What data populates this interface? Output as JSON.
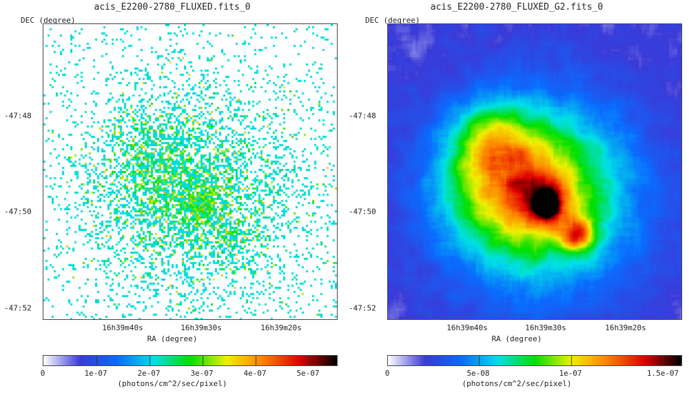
{
  "panels": [
    {
      "title": "acis_E2200-2780_FLUXED.fits_0",
      "y_axis_label": "DEC (degree)",
      "x_axis_label": "RA (degree)",
      "y_ticks": [
        "-47:48",
        "-47:50",
        "-47:52"
      ],
      "x_ticks": [
        "16h39m40s",
        "16h39m30s",
        "16h39m20s"
      ],
      "colorbar": {
        "ticks": [
          "0",
          "1e-07",
          "2e-07",
          "3e-07",
          "4e-07",
          "5e-07"
        ],
        "unit": "(photons/cm^2/sec/pixel)"
      },
      "rendering": "unsmoothed pixel counts"
    },
    {
      "title": "acis_E2200-2780_FLUXED_G2.fits_0",
      "y_axis_label": "DEC (degree)",
      "x_axis_label": "RA (degree)",
      "y_ticks": [
        "-47:48",
        "-47:50",
        "-47:52"
      ],
      "x_ticks": [
        "16h39m40s",
        "16h39m30s",
        "16h39m20s"
      ],
      "colorbar": {
        "ticks": [
          "0",
          "5e-08",
          "1e-07",
          "1.5e-07"
        ],
        "unit": "(photons/cm^2/sec/pixel)"
      },
      "rendering": "gaussian smoothed"
    }
  ],
  "colormap": [
    "#ffffff",
    "#3a3ad8",
    "#0a6cff",
    "#00e0e8",
    "#00e000",
    "#f0f000",
    "#ff8000",
    "#e00000",
    "#000000"
  ]
}
